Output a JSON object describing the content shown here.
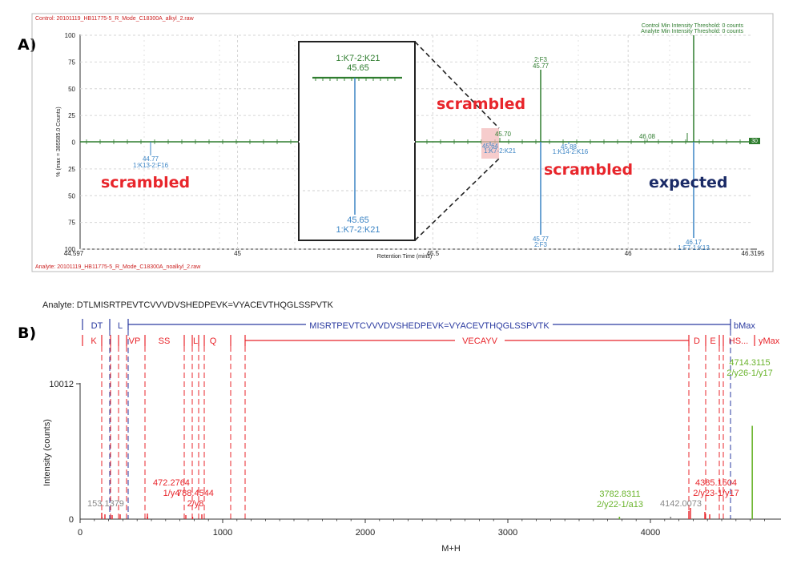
{
  "panel_a": {
    "letter": "A)",
    "header_control": "Control: 20101119_HB11775-5_R_Mode_C18300A_alkyl_2.raw",
    "header_analyte": "Analyte: 20101119_HB11775-5_R_Mode_C18300A_noalkyl_2.raw",
    "legend_line1": "Control Min Intensity Threshold: 0 counts",
    "legend_line2": "Analyte Min Intensity Threshold: 0 counts",
    "y_axis_label": "% (max = 385585.0 Counts)",
    "x_axis_label": "Retention Time (mins)",
    "y_ticks": [
      "100",
      "75",
      "50",
      "25",
      "0",
      "25",
      "50",
      "75",
      "100"
    ],
    "x_start": "44.597",
    "x_end": "46.3195",
    "x_ticks": [
      {
        "label": "45",
        "value": 45.0
      },
      {
        "label": "45.5",
        "value": 45.5
      },
      {
        "label": "46",
        "value": 46.0
      }
    ],
    "end_marker": "30",
    "annotations": {
      "scrambled_left": "scrambled",
      "scrambled_mid": "scrambled",
      "scrambled_right": "scrambled",
      "expected": "expected"
    },
    "inset": {
      "top_label": "1:K7-2:K21",
      "top_value": "45.65",
      "bottom_value": "45.65",
      "bottom_label": "1:K7-2:K21"
    }
  },
  "panel_b": {
    "letter": "B)",
    "analyte_title": "Analyte: DTLMISRTPEVTCVVVDVSHEDPEVK=VYACEVTHQGLSSPVTK",
    "b_row": {
      "segments": [
        "DT",
        "L"
      ],
      "peptide": "MISRTPEVTCVVVDVSHEDPEVK=VYACEVTHQGLSSPVTK",
      "end_label": "bMax"
    },
    "y_row": {
      "segments": [
        "K",
        "VP",
        "SS",
        "L",
        "Q"
      ],
      "peptide": "VECAYV",
      "right_segments": [
        "D",
        "E",
        "HS..."
      ],
      "end_label": "yMax"
    },
    "y_axis_label": "Intensity (counts)",
    "x_axis_label": "M+H",
    "y_ticks": [
      "10012",
      "0"
    ],
    "x_ticks": [
      "0",
      "1000",
      "2000",
      "3000",
      "4000"
    ],
    "peak_labels": {
      "p153": "153.1379",
      "p472_mass": "472.2764",
      "p472_ion": "1/y4",
      "p788_mass": "788.4544",
      "p788_ion": "2/y8",
      "p3782_mass": "3782.8311",
      "p3782_ion": "2/y22-1/a13",
      "p4142": "4142.0073",
      "p4385_mass": "4385.1504",
      "p4385_ion": "2/y23-1/y17",
      "p4714_mass": "4714.3115",
      "p4714_ion": "2/y26-1/y17"
    }
  },
  "chart_data": [
    {
      "type": "line",
      "title": "",
      "xlabel": "Retention Time (mins)",
      "ylabel": "% (max = 385585.0 Counts)",
      "xlim": [
        44.597,
        46.3195
      ],
      "ylim": [
        -100,
        100
      ],
      "grid": true,
      "series": [
        {
          "name": "Control",
          "color": "#2f7d2f",
          "peaks": [
            {
              "x": 45.65,
              "y": 60,
              "label": "1:K7-2:K21"
            },
            {
              "x": 45.7,
              "y": 3
            },
            {
              "x": 45.77,
              "y": 72,
              "label": "2:F3"
            },
            {
              "x": 46.08,
              "y": 3
            },
            {
              "x": 46.17,
              "y": 100
            }
          ]
        },
        {
          "name": "Analyte",
          "color": "#3b84c4",
          "peaks": [
            {
              "x": 44.77,
              "y": -5,
              "label": "1:K13-2:F16"
            },
            {
              "x": 45.64,
              "y": -3,
              "label": "1:K7-2:K21"
            },
            {
              "x": 45.65,
              "y": -70,
              "label": "1:K7-2:K21"
            },
            {
              "x": 45.77,
              "y": -85,
              "label": "2:F3"
            },
            {
              "x": 45.88,
              "y": -3,
              "label": "1:K14-2:K16"
            },
            {
              "x": 46.17,
              "y": -93,
              "label": "1:F7-1:K13"
            }
          ]
        }
      ]
    },
    {
      "type": "bar",
      "title": "Analyte: DTLMISRTPEVTCVVVDVSHEDPEVK=VYACEVTHQGLSSPVTK",
      "xlabel": "M+H",
      "ylabel": "Intensity (counts)",
      "xlim": [
        0,
        4900
      ],
      "ylim": [
        0,
        10012
      ],
      "series": [
        {
          "name": "",
          "peaks": [
            {
              "x": 153.1379,
              "y": 80,
              "color": "#888888"
            },
            {
              "x": 472.2764,
              "y": 70,
              "color": "#e8252b",
              "label": "1/y4"
            },
            {
              "x": 788.4544,
              "y": 60,
              "color": "#e8252b",
              "label": "2/y8"
            },
            {
              "x": 3782.8311,
              "y": 55,
              "color": "#6ab42c",
              "label": "2/y22-1/a13"
            },
            {
              "x": 4142.0073,
              "y": 90,
              "color": "#888888"
            },
            {
              "x": 4385.1504,
              "y": 260,
              "color": "#e8252b",
              "label": "2/y23-1/y17"
            },
            {
              "x": 4714.3115,
              "y": 6900,
              "color": "#6ab42c",
              "label": "2/y26-1/y17"
            }
          ]
        }
      ]
    }
  ]
}
